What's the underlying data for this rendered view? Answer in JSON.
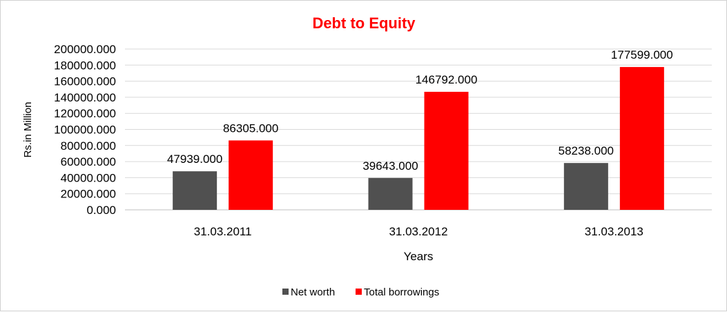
{
  "chart_data": {
    "type": "bar",
    "title": "Debt to Equity",
    "xlabel": "Years",
    "ylabel": "Rs.in Million",
    "categories": [
      "31.03.2011",
      "31.03.2012",
      "31.03.2013"
    ],
    "series": [
      {
        "name": "Net worth",
        "color": "#505050",
        "values": [
          47939.0,
          39643.0,
          58238.0
        ],
        "labels": [
          "47939.000",
          "39643.000",
          "58238.000"
        ]
      },
      {
        "name": "Total borrowings",
        "color": "#ff0000",
        "values": [
          86305.0,
          146792.0,
          177599.0
        ],
        "labels": [
          "86305.000",
          "146792.000",
          "177599.000"
        ]
      }
    ],
    "ylim": [
      0,
      200000
    ],
    "yticks": [
      0,
      20000,
      40000,
      60000,
      80000,
      100000,
      120000,
      140000,
      160000,
      180000,
      200000
    ],
    "ytick_labels": [
      "0.000",
      "20000.000",
      "40000.000",
      "60000.000",
      "80000.000",
      "100000.000",
      "120000.000",
      "140000.000",
      "160000.000",
      "180000.000",
      "200000.000"
    ],
    "grid": true,
    "legend_position": "bottom",
    "title_color": "#ff0000"
  }
}
